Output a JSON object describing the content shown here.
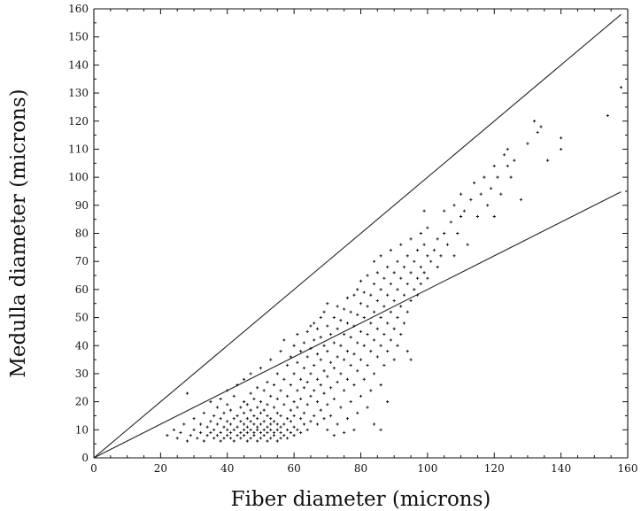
{
  "chart_data": {
    "type": "scatter",
    "xlabel": "Fiber diameter (microns)",
    "ylabel": "Medulla diameter (microns)",
    "xlim": [
      0,
      160
    ],
    "ylim": [
      0,
      160
    ],
    "x_ticks": [
      "0",
      "20",
      "40",
      "60",
      "80",
      "100",
      "120",
      "140",
      "160"
    ],
    "y_ticks": [
      "0",
      "10",
      "20",
      "30",
      "40",
      "50",
      "60",
      "70",
      "80",
      "90",
      "100",
      "110",
      "120",
      "130",
      "140",
      "150",
      "160"
    ],
    "grid": false,
    "marker": "+",
    "lines": [
      {
        "x": [
          0,
          158
        ],
        "y": [
          0,
          158
        ]
      },
      {
        "x": [
          0,
          158
        ],
        "y": [
          0,
          94.8
        ]
      }
    ],
    "points": [
      [
        22,
        8
      ],
      [
        24,
        10
      ],
      [
        25,
        7
      ],
      [
        26,
        9
      ],
      [
        27,
        12
      ],
      [
        28,
        6
      ],
      [
        28,
        23
      ],
      [
        29,
        8
      ],
      [
        30,
        10
      ],
      [
        30,
        14
      ],
      [
        31,
        7
      ],
      [
        32,
        9
      ],
      [
        32,
        12
      ],
      [
        33,
        6
      ],
      [
        33,
        16
      ],
      [
        34,
        8
      ],
      [
        34,
        11
      ],
      [
        35,
        9
      ],
      [
        35,
        13
      ],
      [
        35,
        20
      ],
      [
        36,
        7
      ],
      [
        36,
        10
      ],
      [
        36,
        15
      ],
      [
        37,
        8
      ],
      [
        37,
        12
      ],
      [
        37,
        18
      ],
      [
        38,
        6
      ],
      [
        38,
        9
      ],
      [
        38,
        14
      ],
      [
        38,
        21
      ],
      [
        39,
        7
      ],
      [
        39,
        11
      ],
      [
        39,
        16
      ],
      [
        40,
        8
      ],
      [
        40,
        10
      ],
      [
        40,
        13
      ],
      [
        40,
        19
      ],
      [
        40,
        24
      ],
      [
        41,
        7
      ],
      [
        41,
        9
      ],
      [
        41,
        12
      ],
      [
        41,
        17
      ],
      [
        42,
        6
      ],
      [
        42,
        10
      ],
      [
        42,
        14
      ],
      [
        42,
        22
      ],
      [
        43,
        8
      ],
      [
        43,
        11
      ],
      [
        43,
        15
      ],
      [
        43,
        26
      ],
      [
        44,
        7
      ],
      [
        44,
        9
      ],
      [
        44,
        13
      ],
      [
        44,
        18
      ],
      [
        45,
        8
      ],
      [
        45,
        10
      ],
      [
        45,
        12
      ],
      [
        45,
        16
      ],
      [
        45,
        20
      ],
      [
        45,
        28
      ],
      [
        46,
        6
      ],
      [
        46,
        9
      ],
      [
        46,
        11
      ],
      [
        46,
        14
      ],
      [
        46,
        19
      ],
      [
        47,
        7
      ],
      [
        47,
        10
      ],
      [
        47,
        13
      ],
      [
        47,
        17
      ],
      [
        47,
        23
      ],
      [
        47,
        30
      ],
      [
        48,
        8
      ],
      [
        48,
        9
      ],
      [
        48,
        12
      ],
      [
        48,
        15
      ],
      [
        48,
        21
      ],
      [
        49,
        6
      ],
      [
        49,
        10
      ],
      [
        49,
        11
      ],
      [
        49,
        14
      ],
      [
        49,
        18
      ],
      [
        49,
        25
      ],
      [
        50,
        7
      ],
      [
        50,
        9
      ],
      [
        50,
        12
      ],
      [
        50,
        16
      ],
      [
        50,
        20
      ],
      [
        50,
        32
      ],
      [
        51,
        8
      ],
      [
        51,
        10
      ],
      [
        51,
        13
      ],
      [
        51,
        17
      ],
      [
        51,
        24
      ],
      [
        52,
        6
      ],
      [
        52,
        9
      ],
      [
        52,
        11
      ],
      [
        52,
        15
      ],
      [
        52,
        19
      ],
      [
        52,
        27
      ],
      [
        53,
        7
      ],
      [
        53,
        10
      ],
      [
        53,
        12
      ],
      [
        53,
        14
      ],
      [
        53,
        22
      ],
      [
        53,
        35
      ],
      [
        54,
        8
      ],
      [
        54,
        9
      ],
      [
        54,
        13
      ],
      [
        54,
        18
      ],
      [
        54,
        26
      ],
      [
        55,
        6
      ],
      [
        55,
        10
      ],
      [
        55,
        12
      ],
      [
        55,
        16
      ],
      [
        55,
        21
      ],
      [
        55,
        30
      ],
      [
        56,
        7
      ],
      [
        56,
        9
      ],
      [
        56,
        11
      ],
      [
        56,
        15
      ],
      [
        56,
        24
      ],
      [
        56,
        38
      ],
      [
        57,
        8
      ],
      [
        57,
        12
      ],
      [
        57,
        19
      ],
      [
        57,
        28
      ],
      [
        57,
        42
      ],
      [
        58,
        7
      ],
      [
        58,
        10
      ],
      [
        58,
        14
      ],
      [
        58,
        22
      ],
      [
        58,
        33
      ],
      [
        59,
        9
      ],
      [
        59,
        13
      ],
      [
        59,
        17
      ],
      [
        59,
        26
      ],
      [
        59,
        36
      ],
      [
        60,
        8
      ],
      [
        60,
        11
      ],
      [
        60,
        15
      ],
      [
        60,
        20
      ],
      [
        60,
        30
      ],
      [
        60,
        40
      ],
      [
        61,
        10
      ],
      [
        61,
        18
      ],
      [
        61,
        24
      ],
      [
        61,
        34
      ],
      [
        61,
        44
      ],
      [
        62,
        9
      ],
      [
        62,
        14
      ],
      [
        62,
        21
      ],
      [
        62,
        28
      ],
      [
        62,
        38
      ],
      [
        63,
        12
      ],
      [
        63,
        16
      ],
      [
        63,
        25
      ],
      [
        63,
        32
      ],
      [
        63,
        41
      ],
      [
        64,
        10
      ],
      [
        64,
        19
      ],
      [
        64,
        27
      ],
      [
        64,
        36
      ],
      [
        64,
        45
      ],
      [
        65,
        13
      ],
      [
        65,
        22
      ],
      [
        65,
        30
      ],
      [
        65,
        39
      ],
      [
        65,
        47
      ],
      [
        66,
        15
      ],
      [
        66,
        24
      ],
      [
        66,
        33
      ],
      [
        66,
        42
      ],
      [
        66,
        48
      ],
      [
        67,
        12
      ],
      [
        67,
        20
      ],
      [
        67,
        28
      ],
      [
        67,
        37
      ],
      [
        67,
        46
      ],
      [
        68,
        17
      ],
      [
        68,
        26
      ],
      [
        68,
        35
      ],
      [
        68,
        43
      ],
      [
        68,
        50
      ],
      [
        69,
        14
      ],
      [
        69,
        23
      ],
      [
        69,
        31
      ],
      [
        69,
        40
      ],
      [
        69,
        52
      ],
      [
        70,
        10
      ],
      [
        70,
        19
      ],
      [
        70,
        29
      ],
      [
        70,
        38
      ],
      [
        70,
        47
      ],
      [
        70,
        55
      ],
      [
        71,
        15
      ],
      [
        71,
        25
      ],
      [
        71,
        34
      ],
      [
        71,
        44
      ],
      [
        72,
        8
      ],
      [
        72,
        21
      ],
      [
        72,
        32
      ],
      [
        72,
        41
      ],
      [
        72,
        50
      ],
      [
        73,
        12
      ],
      [
        73,
        27
      ],
      [
        73,
        36
      ],
      [
        73,
        46
      ],
      [
        73,
        54
      ],
      [
        74,
        18
      ],
      [
        74,
        30
      ],
      [
        74,
        40
      ],
      [
        74,
        49
      ],
      [
        75,
        9
      ],
      [
        75,
        24
      ],
      [
        75,
        35
      ],
      [
        75,
        44
      ],
      [
        75,
        53
      ],
      [
        76,
        14
      ],
      [
        76,
        28
      ],
      [
        76,
        38
      ],
      [
        76,
        48
      ],
      [
        76,
        57
      ],
      [
        77,
        20
      ],
      [
        77,
        33
      ],
      [
        77,
        43
      ],
      [
        77,
        52
      ],
      [
        78,
        10
      ],
      [
        78,
        26
      ],
      [
        78,
        37
      ],
      [
        78,
        47
      ],
      [
        78,
        58
      ],
      [
        79,
        16
      ],
      [
        79,
        31
      ],
      [
        79,
        41
      ],
      [
        79,
        51
      ],
      [
        79,
        60
      ],
      [
        80,
        22
      ],
      [
        80,
        35
      ],
      [
        80,
        45
      ],
      [
        80,
        55
      ],
      [
        80,
        63
      ],
      [
        81,
        28
      ],
      [
        81,
        40
      ],
      [
        81,
        50
      ],
      [
        81,
        59
      ],
      [
        82,
        18
      ],
      [
        82,
        33
      ],
      [
        82,
        44
      ],
      [
        82,
        54
      ],
      [
        82,
        65
      ],
      [
        83,
        24
      ],
      [
        83,
        38
      ],
      [
        83,
        48
      ],
      [
        83,
        58
      ],
      [
        84,
        12
      ],
      [
        84,
        30
      ],
      [
        84,
        42
      ],
      [
        84,
        52
      ],
      [
        84,
        62
      ],
      [
        84,
        70
      ],
      [
        85,
        36
      ],
      [
        85,
        46
      ],
      [
        85,
        56
      ],
      [
        85,
        66
      ],
      [
        86,
        10
      ],
      [
        86,
        26
      ],
      [
        86,
        40
      ],
      [
        86,
        50
      ],
      [
        86,
        60
      ],
      [
        86,
        72
      ],
      [
        87,
        33
      ],
      [
        87,
        44
      ],
      [
        87,
        54
      ],
      [
        87,
        64
      ],
      [
        88,
        20
      ],
      [
        88,
        38
      ],
      [
        88,
        48
      ],
      [
        88,
        58
      ],
      [
        88,
        68
      ],
      [
        89,
        42
      ],
      [
        89,
        52
      ],
      [
        89,
        62
      ],
      [
        89,
        74
      ],
      [
        90,
        35
      ],
      [
        90,
        46
      ],
      [
        90,
        56
      ],
      [
        90,
        66
      ],
      [
        91,
        40
      ],
      [
        91,
        50
      ],
      [
        91,
        60
      ],
      [
        91,
        70
      ],
      [
        92,
        44
      ],
      [
        92,
        54
      ],
      [
        92,
        64
      ],
      [
        92,
        76
      ],
      [
        93,
        48
      ],
      [
        93,
        58
      ],
      [
        93,
        68
      ],
      [
        94,
        38
      ],
      [
        94,
        52
      ],
      [
        94,
        62
      ],
      [
        94,
        72
      ],
      [
        95,
        35
      ],
      [
        95,
        56
      ],
      [
        95,
        66
      ],
      [
        95,
        78
      ],
      [
        96,
        60
      ],
      [
        96,
        70
      ],
      [
        97,
        58
      ],
      [
        97,
        64
      ],
      [
        97,
        74
      ],
      [
        98,
        62
      ],
      [
        98,
        68
      ],
      [
        98,
        80
      ],
      [
        99,
        66
      ],
      [
        99,
        76
      ],
      [
        99,
        88
      ],
      [
        100,
        64
      ],
      [
        100,
        72
      ],
      [
        100,
        82
      ],
      [
        101,
        70
      ],
      [
        102,
        74
      ],
      [
        103,
        68
      ],
      [
        103,
        78
      ],
      [
        104,
        72
      ],
      [
        105,
        80
      ],
      [
        105,
        88
      ],
      [
        106,
        76
      ],
      [
        107,
        84
      ],
      [
        108,
        72
      ],
      [
        108,
        90
      ],
      [
        109,
        80
      ],
      [
        110,
        86
      ],
      [
        110,
        94
      ],
      [
        111,
        88
      ],
      [
        112,
        76
      ],
      [
        113,
        92
      ],
      [
        114,
        98
      ],
      [
        115,
        86
      ],
      [
        116,
        94
      ],
      [
        117,
        100
      ],
      [
        118,
        90
      ],
      [
        119,
        96
      ],
      [
        120,
        86
      ],
      [
        120,
        104
      ],
      [
        121,
        100
      ],
      [
        122,
        94
      ],
      [
        123,
        108
      ],
      [
        124,
        104
      ],
      [
        124,
        110
      ],
      [
        125,
        100
      ],
      [
        126,
        106
      ],
      [
        128,
        92
      ],
      [
        130,
        112
      ],
      [
        132,
        120
      ],
      [
        133,
        116
      ],
      [
        134,
        118
      ],
      [
        136,
        106
      ],
      [
        140,
        110
      ],
      [
        140,
        114
      ],
      [
        154,
        122
      ],
      [
        158,
        132
      ]
    ]
  }
}
